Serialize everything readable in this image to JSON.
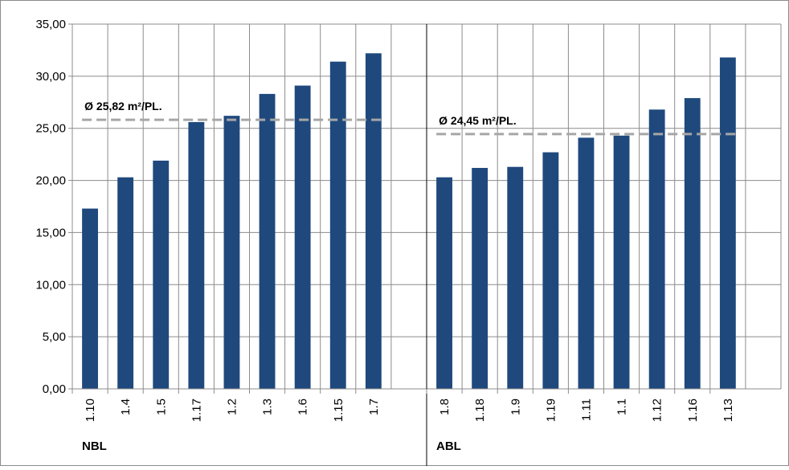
{
  "chart_data": {
    "type": "bar",
    "ylim": [
      0,
      35
    ],
    "y_ticks": [
      "0,00",
      "5,00",
      "10,00",
      "15,00",
      "20,00",
      "25,00",
      "30,00",
      "35,00"
    ],
    "grid": true,
    "colors": {
      "bar": "#1f497d",
      "grid": "#8c8c8c",
      "average_line": "#a6a6a6",
      "axis": "#000000"
    },
    "groups": [
      {
        "label": "NBL",
        "categories": [
          "1.10",
          "1.4",
          "1.5",
          "1.17",
          "1.2",
          "1.3",
          "1.6",
          "1.15",
          "1.7"
        ],
        "values": [
          17.3,
          20.3,
          21.9,
          25.6,
          26.2,
          28.3,
          29.1,
          31.4,
          32.2
        ],
        "average": 25.82,
        "average_label": "Ø 25,82 m²/PL."
      },
      {
        "label": "ABL",
        "categories": [
          "1.8",
          "1.18",
          "1.9",
          "1.19",
          "1.11",
          "1.1",
          "1.12",
          "1.16",
          "1.13"
        ],
        "values": [
          20.3,
          21.2,
          21.3,
          22.7,
          24.1,
          24.3,
          26.8,
          27.9,
          31.8
        ],
        "average": 24.45,
        "average_label": "Ø 24,45 m²/PL."
      }
    ]
  }
}
